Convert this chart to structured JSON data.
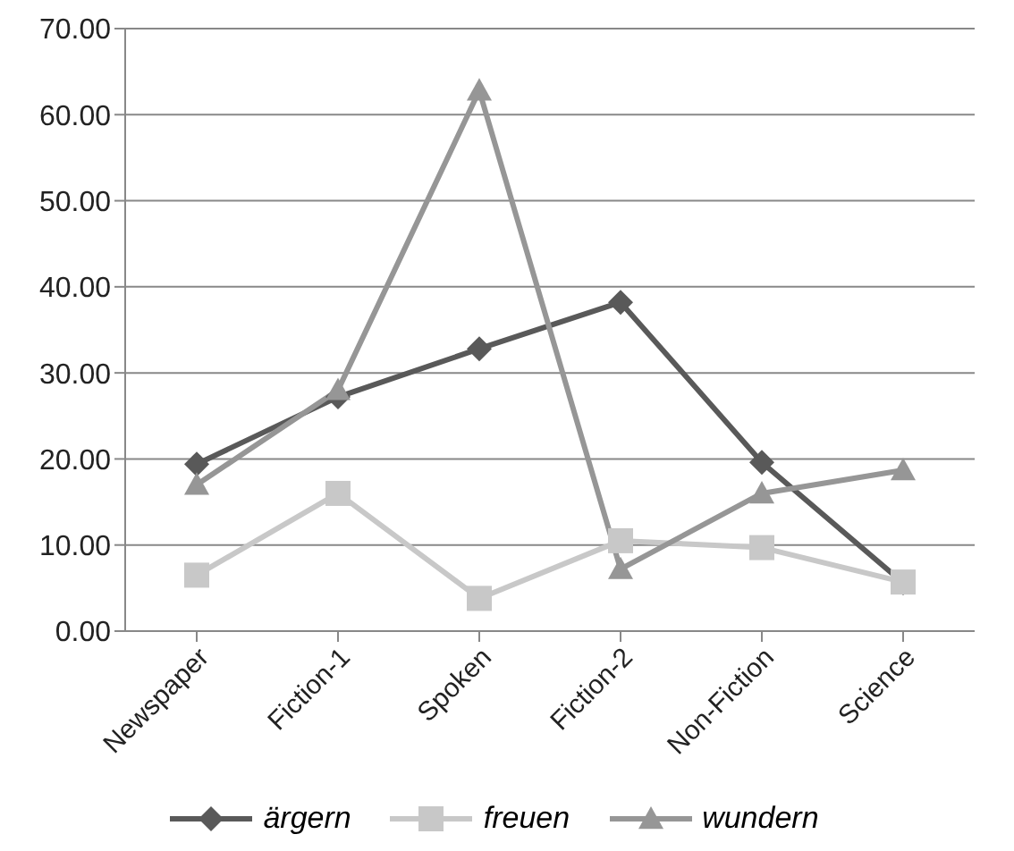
{
  "chart_data": {
    "type": "line",
    "categories": [
      "Newspaper",
      "Fiction-1",
      "Spoken",
      "Fiction-2",
      "Non-Fiction",
      "Science"
    ],
    "series": [
      {
        "name": "ärgern",
        "color": "#595959",
        "marker": "diamond",
        "values": [
          19.4,
          27.2,
          32.8,
          38.2,
          19.6,
          5.6
        ]
      },
      {
        "name": "freuen",
        "color": "#c8c8c8",
        "marker": "square",
        "values": [
          6.5,
          16.0,
          3.8,
          10.5,
          9.7,
          5.7
        ]
      },
      {
        "name": "wundern",
        "color": "#969696",
        "marker": "triangle",
        "values": [
          17.0,
          28.0,
          62.8,
          7.2,
          16.0,
          18.7
        ]
      }
    ],
    "ylim": [
      0,
      70
    ],
    "yticks": [
      {
        "value": 0,
        "label": "0.00"
      },
      {
        "value": 10,
        "label": "10.00"
      },
      {
        "value": 20,
        "label": "20.00"
      },
      {
        "value": 30,
        "label": "30.00"
      },
      {
        "value": 40,
        "label": "40.00"
      },
      {
        "value": 50,
        "label": "50.00"
      },
      {
        "value": 60,
        "label": "60.00"
      },
      {
        "value": 70,
        "label": "70.00"
      }
    ],
    "grid": "y",
    "legend": "bottom",
    "line_style": "solid"
  }
}
